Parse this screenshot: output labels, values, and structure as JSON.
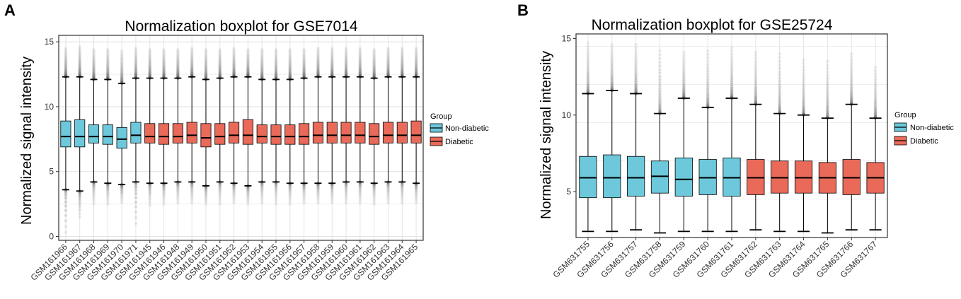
{
  "colors": {
    "non_diabetic": "#6cc8da",
    "diabetic": "#ea6a5a",
    "grid": "#e4e4e4",
    "axis": "#333333",
    "outlier": "#5a5a5a"
  },
  "legend": {
    "title": "Group",
    "items": [
      {
        "label": "Non-diabetic",
        "group": "non_diabetic"
      },
      {
        "label": "Diabetic",
        "group": "diabetic"
      }
    ]
  },
  "panels": [
    {
      "label": "A"
    },
    {
      "label": "B"
    }
  ],
  "chart_data": [
    {
      "type": "box",
      "title": "Normalization boxplot for GSE7014",
      "xlabel": "",
      "ylabel": "Normalized signal intensity",
      "ylim": [
        -0.3,
        15.5
      ],
      "yticks": [
        0,
        5,
        10,
        15
      ],
      "ytick_labels": [
        "0",
        "5",
        "10",
        "15"
      ],
      "grid": true,
      "legend_position": "right",
      "samples": [
        {
          "name": "GSM161966",
          "group": "non_diabetic",
          "whislo": 3.6,
          "q1": 6.9,
          "median": 7.7,
          "q3": 8.9,
          "whishi": 12.3,
          "out_lo": 0.3,
          "out_hi": 14.5
        },
        {
          "name": "GSM161967",
          "group": "non_diabetic",
          "whislo": 3.5,
          "q1": 6.9,
          "median": 7.7,
          "q3": 9.0,
          "whishi": 12.3,
          "out_lo": 1.5,
          "out_hi": 14.6
        },
        {
          "name": "GSM161968",
          "group": "non_diabetic",
          "whislo": 4.2,
          "q1": 7.2,
          "median": 7.7,
          "q3": 8.6,
          "whishi": 12.1,
          "out_lo": 2.5,
          "out_hi": 14.4
        },
        {
          "name": "GSM161969",
          "group": "non_diabetic",
          "whislo": 4.1,
          "q1": 7.1,
          "median": 7.7,
          "q3": 8.6,
          "whishi": 12.1,
          "out_lo": 2.5,
          "out_hi": 14.4
        },
        {
          "name": "GSM161970",
          "group": "non_diabetic",
          "whislo": 4.0,
          "q1": 6.8,
          "median": 7.5,
          "q3": 8.4,
          "whishi": 11.8,
          "out_lo": 2.6,
          "out_hi": 14.3
        },
        {
          "name": "GSM161971",
          "group": "non_diabetic",
          "whislo": 4.2,
          "q1": 7.2,
          "median": 7.8,
          "q3": 8.8,
          "whishi": 12.2,
          "out_lo": 1.0,
          "out_hi": 14.5
        },
        {
          "name": "GSM161945",
          "group": "diabetic",
          "whislo": 4.1,
          "q1": 7.2,
          "median": 7.7,
          "q3": 8.7,
          "whishi": 12.2,
          "out_lo": 2.4,
          "out_hi": 14.4
        },
        {
          "name": "GSM161946",
          "group": "diabetic",
          "whislo": 4.1,
          "q1": 7.1,
          "median": 7.7,
          "q3": 8.7,
          "whishi": 12.2,
          "out_lo": 2.5,
          "out_hi": 14.4
        },
        {
          "name": "GSM161948",
          "group": "diabetic",
          "whislo": 4.2,
          "q1": 7.2,
          "median": 7.7,
          "q3": 8.7,
          "whishi": 12.2,
          "out_lo": 2.6,
          "out_hi": 14.4
        },
        {
          "name": "GSM161949",
          "group": "diabetic",
          "whislo": 4.2,
          "q1": 7.2,
          "median": 7.8,
          "q3": 8.8,
          "whishi": 12.3,
          "out_lo": 2.6,
          "out_hi": 14.5
        },
        {
          "name": "GSM161950",
          "group": "diabetic",
          "whislo": 3.9,
          "q1": 6.9,
          "median": 7.6,
          "q3": 8.7,
          "whishi": 12.1,
          "out_lo": 2.5,
          "out_hi": 14.4
        },
        {
          "name": "GSM161951",
          "group": "diabetic",
          "whislo": 4.2,
          "q1": 7.1,
          "median": 7.7,
          "q3": 8.7,
          "whishi": 12.2,
          "out_lo": 2.5,
          "out_hi": 14.4
        },
        {
          "name": "GSM161952",
          "group": "diabetic",
          "whislo": 4.1,
          "q1": 7.2,
          "median": 7.8,
          "q3": 8.8,
          "whishi": 12.3,
          "out_lo": 2.6,
          "out_hi": 14.5
        },
        {
          "name": "GSM161953",
          "group": "diabetic",
          "whislo": 3.9,
          "q1": 7.1,
          "median": 7.8,
          "q3": 9.0,
          "whishi": 12.3,
          "out_lo": 2.5,
          "out_hi": 14.4
        },
        {
          "name": "GSM161954",
          "group": "diabetic",
          "whislo": 4.2,
          "q1": 7.2,
          "median": 7.7,
          "q3": 8.6,
          "whishi": 12.1,
          "out_lo": 2.6,
          "out_hi": 14.4
        },
        {
          "name": "GSM161955",
          "group": "diabetic",
          "whislo": 4.2,
          "q1": 7.1,
          "median": 7.7,
          "q3": 8.6,
          "whishi": 12.1,
          "out_lo": 2.5,
          "out_hi": 14.4
        },
        {
          "name": "GSM161956",
          "group": "diabetic",
          "whislo": 4.1,
          "q1": 7.1,
          "median": 7.7,
          "q3": 8.6,
          "whishi": 12.1,
          "out_lo": 2.5,
          "out_hi": 14.4
        },
        {
          "name": "GSM161957",
          "group": "diabetic",
          "whislo": 4.1,
          "q1": 7.1,
          "median": 7.7,
          "q3": 8.7,
          "whishi": 12.2,
          "out_lo": 2.6,
          "out_hi": 14.4
        },
        {
          "name": "GSM161958",
          "group": "diabetic",
          "whislo": 4.1,
          "q1": 7.2,
          "median": 7.8,
          "q3": 8.8,
          "whishi": 12.3,
          "out_lo": 2.6,
          "out_hi": 14.5
        },
        {
          "name": "GSM161959",
          "group": "diabetic",
          "whislo": 4.1,
          "q1": 7.2,
          "median": 7.8,
          "q3": 8.8,
          "whishi": 12.3,
          "out_lo": 2.6,
          "out_hi": 14.5
        },
        {
          "name": "GSM161960",
          "group": "diabetic",
          "whislo": 4.2,
          "q1": 7.2,
          "median": 7.8,
          "q3": 8.8,
          "whishi": 12.3,
          "out_lo": 2.6,
          "out_hi": 14.5
        },
        {
          "name": "GSM161961",
          "group": "diabetic",
          "whislo": 4.2,
          "q1": 7.2,
          "median": 7.8,
          "q3": 8.8,
          "whishi": 12.3,
          "out_lo": 2.6,
          "out_hi": 14.5
        },
        {
          "name": "GSM161962",
          "group": "diabetic",
          "whislo": 4.1,
          "q1": 7.1,
          "median": 7.7,
          "q3": 8.7,
          "whishi": 12.2,
          "out_lo": 2.5,
          "out_hi": 14.4
        },
        {
          "name": "GSM161963",
          "group": "diabetic",
          "whislo": 4.2,
          "q1": 7.2,
          "median": 7.8,
          "q3": 8.8,
          "whishi": 12.3,
          "out_lo": 2.6,
          "out_hi": 14.5
        },
        {
          "name": "GSM161964",
          "group": "diabetic",
          "whislo": 4.2,
          "q1": 7.2,
          "median": 7.8,
          "q3": 8.8,
          "whishi": 12.3,
          "out_lo": 2.6,
          "out_hi": 14.5
        },
        {
          "name": "GSM161965",
          "group": "diabetic",
          "whislo": 4.1,
          "q1": 7.2,
          "median": 7.8,
          "q3": 8.9,
          "whishi": 12.3,
          "out_lo": 2.6,
          "out_hi": 14.5
        }
      ]
    },
    {
      "type": "box",
      "title": "Normalization boxplot for GSE25724",
      "xlabel": "",
      "ylabel": "Normalized signal intensity",
      "ylim": [
        2.0,
        15.3
      ],
      "yticks": [
        5,
        10,
        15
      ],
      "ytick_labels": [
        "5",
        "10",
        "15"
      ],
      "grid": true,
      "legend_position": "right",
      "samples": [
        {
          "name": "GSM631755",
          "group": "non_diabetic",
          "whislo": 2.4,
          "q1": 4.6,
          "median": 5.9,
          "q3": 7.3,
          "whishi": 11.4,
          "out_hi": 14.7
        },
        {
          "name": "GSM631756",
          "group": "non_diabetic",
          "whislo": 2.4,
          "q1": 4.6,
          "median": 5.9,
          "q3": 7.4,
          "whishi": 11.6,
          "out_hi": 14.6
        },
        {
          "name": "GSM631757",
          "group": "non_diabetic",
          "whislo": 2.5,
          "q1": 4.7,
          "median": 5.9,
          "q3": 7.3,
          "whishi": 11.4,
          "out_hi": 14.6
        },
        {
          "name": "GSM631758",
          "group": "non_diabetic",
          "whislo": 2.3,
          "q1": 4.9,
          "median": 6.0,
          "q3": 7.0,
          "whishi": 10.1,
          "out_hi": 14.2
        },
        {
          "name": "GSM631759",
          "group": "non_diabetic",
          "whislo": 2.4,
          "q1": 4.7,
          "median": 5.8,
          "q3": 7.2,
          "whishi": 11.1,
          "out_hi": 14.1
        },
        {
          "name": "GSM631760",
          "group": "non_diabetic",
          "whislo": 2.4,
          "q1": 4.8,
          "median": 5.9,
          "q3": 7.1,
          "whishi": 10.5,
          "out_hi": 14.2
        },
        {
          "name": "GSM631761",
          "group": "non_diabetic",
          "whislo": 2.4,
          "q1": 4.7,
          "median": 5.9,
          "q3": 7.2,
          "whishi": 11.1,
          "out_hi": 14.4
        },
        {
          "name": "GSM631762",
          "group": "diabetic",
          "whislo": 2.5,
          "q1": 4.8,
          "median": 5.9,
          "q3": 7.1,
          "whishi": 10.7,
          "out_hi": 14.1
        },
        {
          "name": "GSM631763",
          "group": "diabetic",
          "whislo": 2.4,
          "q1": 4.9,
          "median": 5.9,
          "q3": 7.0,
          "whishi": 10.1,
          "out_hi": 14.0
        },
        {
          "name": "GSM631764",
          "group": "diabetic",
          "whislo": 2.4,
          "q1": 4.9,
          "median": 5.9,
          "q3": 7.0,
          "whishi": 10.0,
          "out_hi": 13.6
        },
        {
          "name": "GSM631765",
          "group": "diabetic",
          "whislo": 2.3,
          "q1": 4.9,
          "median": 5.9,
          "q3": 6.9,
          "whishi": 9.8,
          "out_hi": 13.5
        },
        {
          "name": "GSM631766",
          "group": "diabetic",
          "whislo": 2.5,
          "q1": 4.8,
          "median": 5.9,
          "q3": 7.1,
          "whishi": 10.7,
          "out_hi": 14.0
        },
        {
          "name": "GSM631767",
          "group": "diabetic",
          "whislo": 2.5,
          "q1": 4.9,
          "median": 5.9,
          "q3": 6.9,
          "whishi": 9.8,
          "out_hi": 13.1
        }
      ]
    }
  ]
}
